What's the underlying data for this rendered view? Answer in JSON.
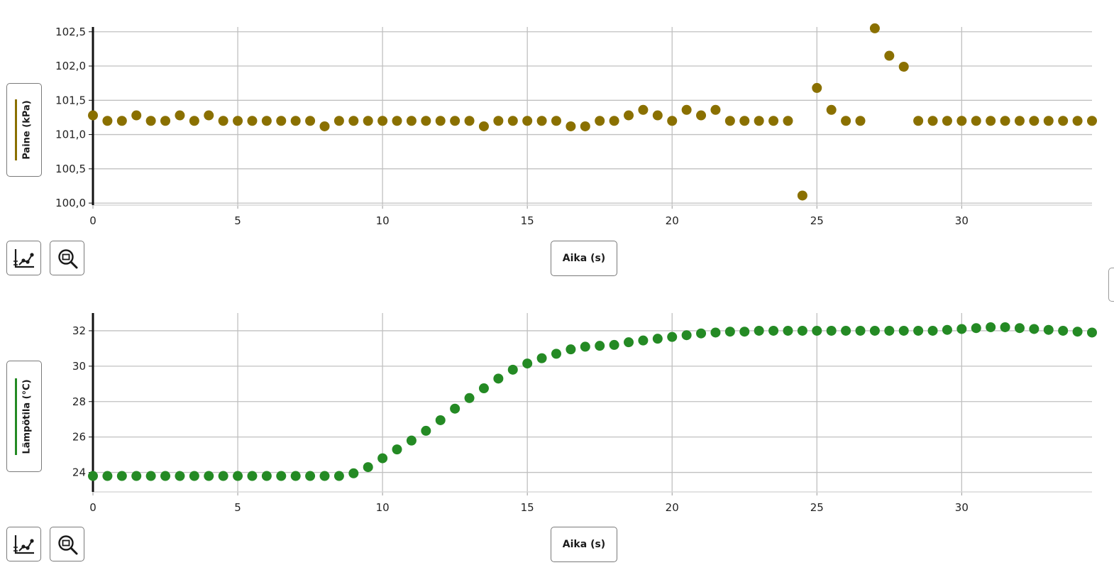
{
  "colors": {
    "pressure_series": "#8a7000",
    "temperature_series": "#248a24",
    "grid": "#c0c0c0",
    "axis": "#111111"
  },
  "icons": {
    "fit_button": "scatter-plot-icon",
    "zoom_button": "zoom-icon"
  },
  "chart_data": [
    {
      "type": "scatter",
      "xlabel": "Aika (s)",
      "ylabel": "Paine (kPa)",
      "xlim": [
        0,
        34.5
      ],
      "ylim": [
        99.97,
        102.57
      ],
      "x_ticks": [
        0,
        5,
        10,
        15,
        20,
        25,
        30
      ],
      "x_tick_labels": [
        "0",
        "5",
        "10",
        "15",
        "20",
        "25",
        "30"
      ],
      "y_ticks": [
        100.0,
        100.5,
        101.0,
        101.5,
        102.0,
        102.5
      ],
      "y_tick_labels": [
        "100,0",
        "100,5",
        "101,0",
        "101,5",
        "102,0",
        "102,5"
      ],
      "grid": true,
      "series": [
        {
          "x": [
            0,
            0.5,
            1,
            1.5,
            2,
            2.5,
            3,
            3.5,
            4,
            4.5,
            5,
            5.5,
            6,
            6.5,
            7,
            7.5,
            8,
            8.5,
            9,
            9.5,
            10,
            10.5,
            11,
            11.5,
            12,
            12.5,
            13,
            13.5,
            14,
            14.5,
            15,
            15.5,
            16,
            16.5,
            17,
            17.5,
            18,
            18.5,
            19,
            19.5,
            20,
            20.5,
            21,
            21.5,
            22,
            22.5,
            23,
            23.5,
            24,
            24.5,
            25,
            25.5,
            26,
            26.5,
            27,
            27.5,
            28,
            28.5,
            29,
            29.5,
            30,
            30.5,
            31,
            31.5,
            32,
            32.5,
            33,
            33.5,
            34,
            34.5
          ],
          "y": [
            101.28,
            101.2,
            101.2,
            101.28,
            101.2,
            101.2,
            101.28,
            101.2,
            101.28,
            101.2,
            101.2,
            101.2,
            101.2,
            101.2,
            101.2,
            101.2,
            101.12,
            101.2,
            101.2,
            101.2,
            101.2,
            101.2,
            101.2,
            101.2,
            101.2,
            101.2,
            101.2,
            101.12,
            101.2,
            101.2,
            101.2,
            101.2,
            101.2,
            101.12,
            101.12,
            101.2,
            101.2,
            101.28,
            101.36,
            101.28,
            101.2,
            101.36,
            101.28,
            101.36,
            101.2,
            101.2,
            101.2,
            101.2,
            101.2,
            100.11,
            101.68,
            101.36,
            101.2,
            101.2,
            102.55,
            102.15,
            101.99,
            101.2,
            101.2,
            101.2,
            101.2,
            101.2,
            101.2,
            101.2,
            101.2,
            101.2,
            101.2,
            101.2,
            101.2,
            101.2
          ]
        }
      ]
    },
    {
      "type": "scatter",
      "xlabel": "Aika (s)",
      "ylabel": "Lämpötila (°C)",
      "xlim": [
        0,
        34.5
      ],
      "ylim": [
        22.9,
        33.0
      ],
      "x_ticks": [
        0,
        5,
        10,
        15,
        20,
        25,
        30
      ],
      "x_tick_labels": [
        "0",
        "5",
        "10",
        "15",
        "20",
        "25",
        "30"
      ],
      "y_ticks": [
        24,
        26,
        28,
        30,
        32
      ],
      "y_tick_labels": [
        "24",
        "26",
        "28",
        "30",
        "32"
      ],
      "grid": true,
      "series": [
        {
          "x": [
            0,
            0.5,
            1,
            1.5,
            2,
            2.5,
            3,
            3.5,
            4,
            4.5,
            5,
            5.5,
            6,
            6.5,
            7,
            7.5,
            8,
            8.5,
            9,
            9.5,
            10,
            10.5,
            11,
            11.5,
            12,
            12.5,
            13,
            13.5,
            14,
            14.5,
            15,
            15.5,
            16,
            16.5,
            17,
            17.5,
            18,
            18.5,
            19,
            19.5,
            20,
            20.5,
            21,
            21.5,
            22,
            22.5,
            23,
            23.5,
            24,
            24.5,
            25,
            25.5,
            26,
            26.5,
            27,
            27.5,
            28,
            28.5,
            29,
            29.5,
            30,
            30.5,
            31,
            31.5,
            32,
            32.5,
            33,
            33.5,
            34,
            34.5
          ],
          "y": [
            23.8,
            23.8,
            23.8,
            23.8,
            23.8,
            23.8,
            23.8,
            23.8,
            23.8,
            23.8,
            23.8,
            23.8,
            23.8,
            23.8,
            23.8,
            23.8,
            23.8,
            23.8,
            23.95,
            24.3,
            24.8,
            25.3,
            25.8,
            26.35,
            26.95,
            27.6,
            28.2,
            28.75,
            29.3,
            29.8,
            30.15,
            30.45,
            30.7,
            30.95,
            31.1,
            31.15,
            31.2,
            31.35,
            31.45,
            31.55,
            31.65,
            31.75,
            31.85,
            31.9,
            31.95,
            31.95,
            32.0,
            32.0,
            32.0,
            32.0,
            32.0,
            32.0,
            32.0,
            32.0,
            32.0,
            32.0,
            32.0,
            32.0,
            32.0,
            32.05,
            32.1,
            32.15,
            32.2,
            32.2,
            32.15,
            32.1,
            32.05,
            32.0,
            31.95,
            31.9
          ]
        }
      ]
    }
  ]
}
